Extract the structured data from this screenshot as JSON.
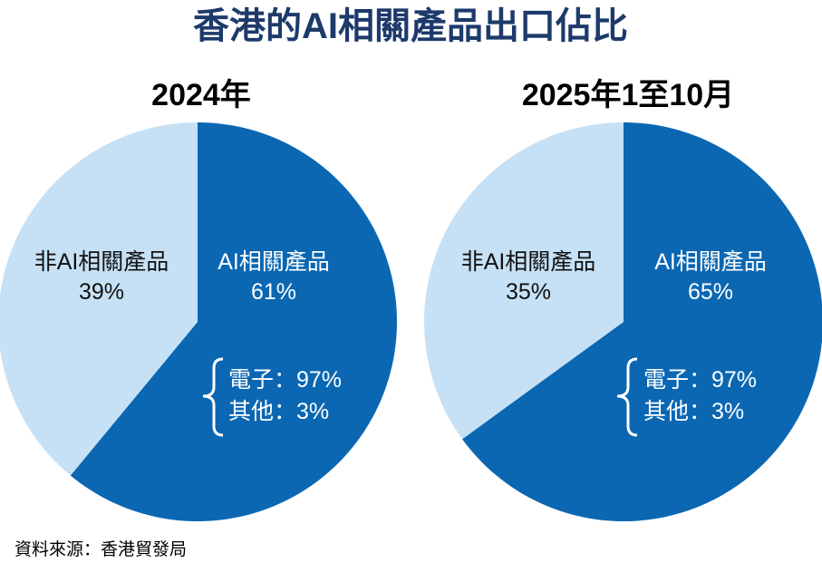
{
  "chart_data": [
    {
      "type": "pie",
      "title": "2024年",
      "categories": [
        "AI相關產品",
        "非AI相關產品"
      ],
      "values": [
        61,
        39
      ],
      "value_labels": [
        "61%",
        "39%"
      ],
      "breakdown": {
        "of": "AI相關產品",
        "items": [
          {
            "label": "電子：97%",
            "value": 97
          },
          {
            "label": "其他：3%",
            "value": 3
          }
        ]
      }
    },
    {
      "type": "pie",
      "title": "2025年1至10月",
      "categories": [
        "AI相關產品",
        "非AI相關產品"
      ],
      "values": [
        65,
        35
      ],
      "value_labels": [
        "65%",
        "35%"
      ],
      "breakdown": {
        "of": "AI相關產品",
        "items": [
          {
            "label": "電子：97%",
            "value": 97
          },
          {
            "label": "其他：3%",
            "value": 3
          }
        ]
      }
    }
  ],
  "title": "香港的AI相關產品出口佔比",
  "source": "資料來源：香港貿發局",
  "colors": {
    "ai": "#0b67b2",
    "non_ai": "#c6e1f5",
    "title": "#1d3a6b"
  }
}
